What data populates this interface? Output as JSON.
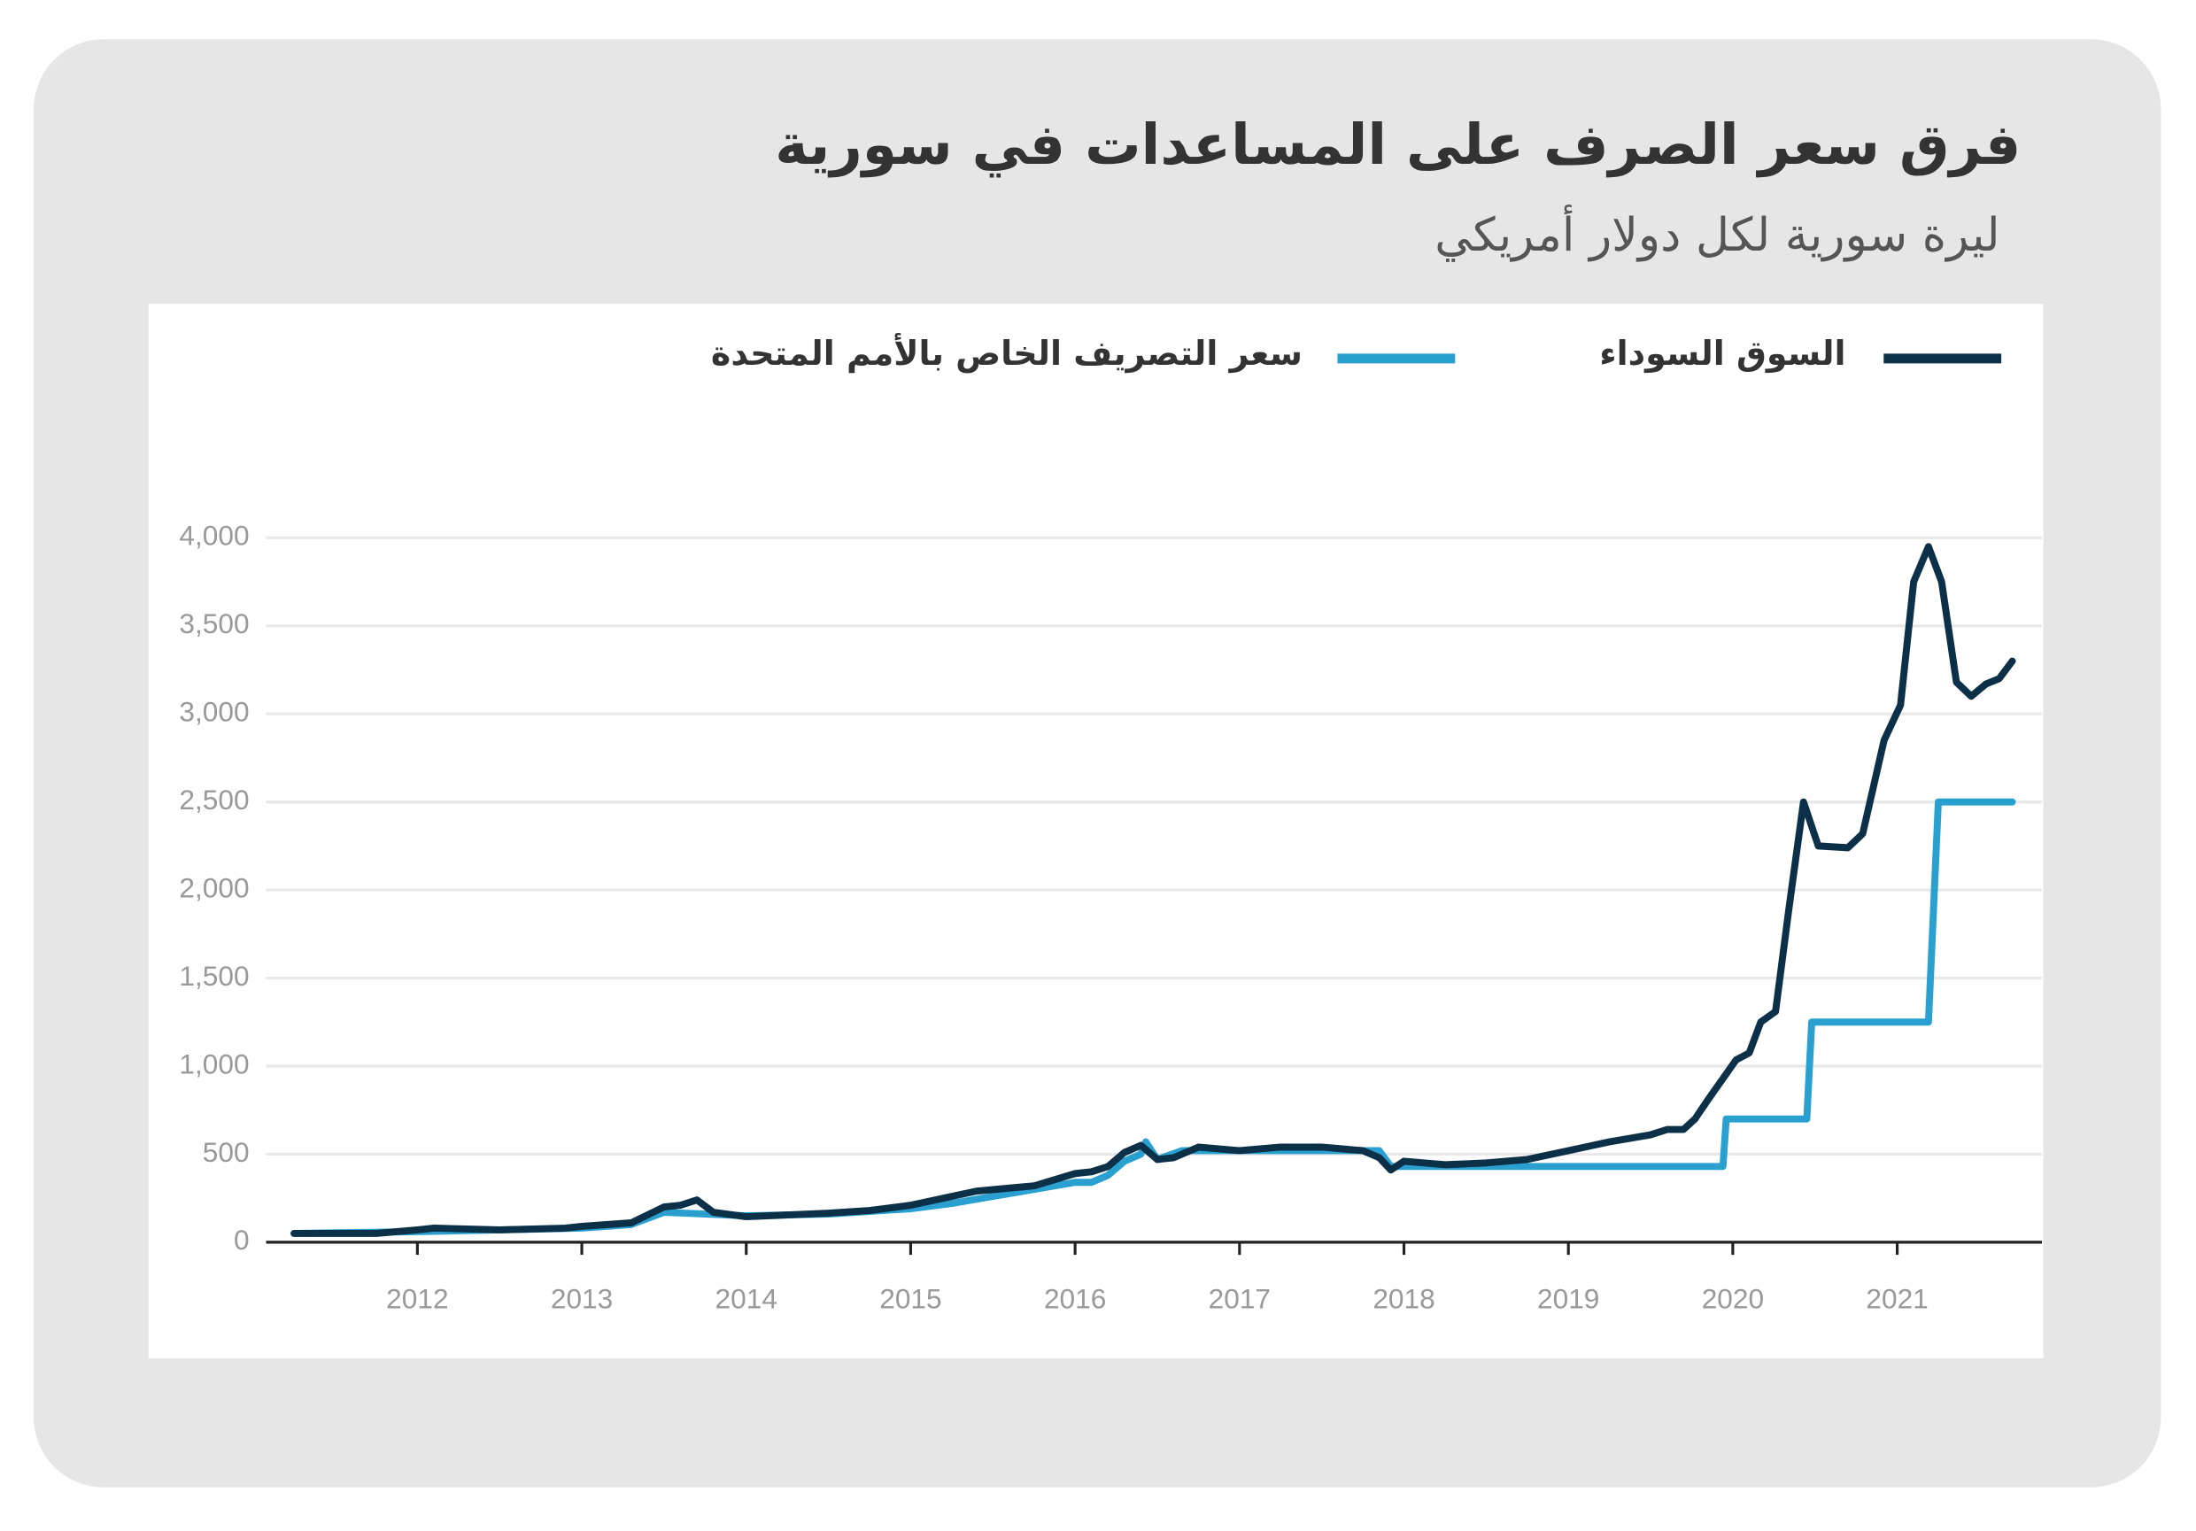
{
  "chart_data": {
    "type": "line",
    "title": "فرق سعر الصرف على المساعدات في سورية",
    "subtitle": "ليرة سورية لكل دولار أمريكي",
    "xlim": [
      2011.08,
      2021.88
    ],
    "xticks": [
      2012,
      2013,
      2014,
      2015,
      2016,
      2017,
      2018,
      2019,
      2020,
      2021
    ],
    "ylim": [
      0,
      4000
    ],
    "yticks": [
      0,
      500,
      {
        "value": 1000,
        "label": "1,000"
      },
      {
        "value": 1500,
        "label": "1,500"
      },
      {
        "value": 2000,
        "label": "2,000"
      },
      {
        "value": 2500,
        "label": "2,500"
      },
      {
        "value": 3000,
        "label": "3,000"
      },
      {
        "value": 3500,
        "label": "3,500"
      },
      {
        "value": 4000,
        "label": "4,000"
      }
    ],
    "grid": true,
    "series": [
      {
        "name": "السوق السوداء",
        "color": "#0d3049",
        "x": [
          2011.25,
          2011.5,
          2011.75,
          2012.0,
          2012.1,
          2012.5,
          2012.9,
          2013.0,
          2013.3,
          2013.5,
          2013.6,
          2013.7,
          2013.8,
          2014.0,
          2014.5,
          2014.75,
          2015.0,
          2015.25,
          2015.4,
          2015.75,
          2016.0,
          2016.1,
          2016.2,
          2016.3,
          2016.4,
          2016.5,
          2016.6,
          2016.75,
          2017.0,
          2017.25,
          2017.5,
          2017.75,
          2017.85,
          2017.92,
          2018.0,
          2018.25,
          2018.5,
          2018.75,
          2019.0,
          2019.25,
          2019.5,
          2019.6,
          2019.7,
          2019.77,
          2019.85,
          2020.02,
          2020.1,
          2020.17,
          2020.26,
          2020.34,
          2020.43,
          2020.52,
          2020.7,
          2020.79,
          2020.92,
          2021.02,
          2021.1,
          2021.19,
          2021.27,
          2021.36,
          2021.45,
          2021.54,
          2021.62,
          2021.7
        ],
        "values": [
          50,
          50,
          50,
          70,
          80,
          70,
          80,
          90,
          110,
          200,
          210,
          240,
          170,
          145,
          165,
          180,
          210,
          260,
          290,
          320,
          390,
          400,
          430,
          510,
          550,
          470,
          480,
          540,
          520,
          540,
          540,
          520,
          480,
          410,
          460,
          440,
          450,
          470,
          520,
          570,
          610,
          640,
          640,
          700,
          810,
          1035,
          1075,
          1250,
          1310,
          1885,
          2500,
          2250,
          2240,
          2320,
          2850,
          3050,
          3750,
          3950,
          3750,
          3180,
          3100,
          3170,
          3200,
          3300
        ]
      },
      {
        "name": "سعر التصريف الخاص بالأمم المتحدة",
        "color": "#29a0d0",
        "x": [
          2011.25,
          2012.0,
          2012.5,
          2013.0,
          2013.3,
          2013.5,
          2014.0,
          2014.5,
          2015.0,
          2015.25,
          2015.5,
          2015.75,
          2016.0,
          2016.1,
          2016.2,
          2016.3,
          2016.4,
          2016.43,
          2016.5,
          2016.65,
          2017.85,
          2017.92,
          2019.94,
          2019.96,
          2020.45,
          2020.48,
          2021.19,
          2021.25,
          2021.7
        ],
        "values": [
          50,
          60,
          70,
          80,
          100,
          170,
          150,
          160,
          190,
          220,
          260,
          300,
          340,
          340,
          380,
          460,
          500,
          570,
          470,
          520,
          520,
          430,
          430,
          700,
          700,
          1250,
          1250,
          2500,
          2500
        ]
      }
    ]
  }
}
